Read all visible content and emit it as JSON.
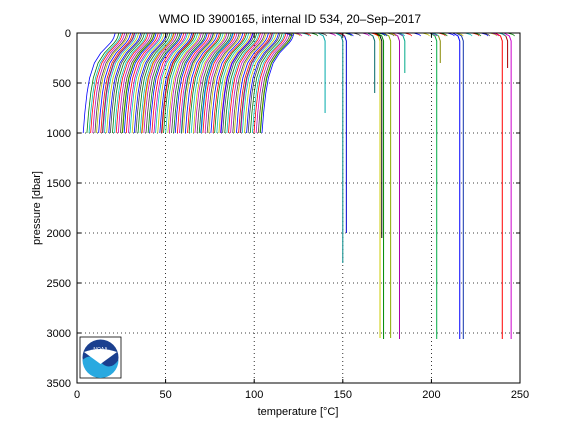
{
  "chart_data": {
    "type": "line",
    "title": "WMO ID 3900165, internal ID 534, 20–Sep–2017",
    "xlabel_prefix": "temperature [",
    "xlabel_unit": "°C",
    "xlabel_suffix": "]",
    "ylabel": "pressure [dbar]",
    "xlim": [
      0,
      250
    ],
    "ylim": [
      0,
      3500
    ],
    "y_reversed": true,
    "grid": true,
    "x_ticks": [
      0,
      50,
      100,
      150,
      200,
      250
    ],
    "y_ticks": [
      0,
      500,
      1000,
      1500,
      2000,
      2500,
      3000,
      3500
    ],
    "profile_group": {
      "count": 100,
      "first_start_temp": 5,
      "last_start_temp": 105,
      "surface_offset": 18,
      "max_pressure": 1000
    },
    "deep_profiles": [
      {
        "temp": 140,
        "depth": 800,
        "color": "#00aaaa"
      },
      {
        "temp": 150,
        "depth": 2300,
        "color": "#008888"
      },
      {
        "temp": 152,
        "depth": 2000,
        "color": "#0000cc"
      },
      {
        "temp": 171,
        "depth": 3050,
        "color": "#cccc00"
      },
      {
        "temp": 172,
        "depth": 2050,
        "color": "#000000"
      },
      {
        "temp": 173,
        "depth": 3060,
        "color": "#008800"
      },
      {
        "temp": 177,
        "depth": 3050,
        "color": "#88aa00"
      },
      {
        "temp": 182,
        "depth": 3060,
        "color": "#aa00aa"
      },
      {
        "temp": 203,
        "depth": 3060,
        "color": "#00aa44"
      },
      {
        "temp": 216,
        "depth": 3060,
        "color": "#0000ff"
      },
      {
        "temp": 218,
        "depth": 3060,
        "color": "#1133aa"
      },
      {
        "temp": 240,
        "depth": 3060,
        "color": "#ff0000"
      },
      {
        "temp": 245,
        "depth": 3060,
        "color": "#cc00cc"
      },
      {
        "temp": 168,
        "depth": 600,
        "color": "#006666"
      },
      {
        "temp": 185,
        "depth": 400,
        "color": "#00aa88"
      },
      {
        "temp": 205,
        "depth": 300,
        "color": "#888800"
      },
      {
        "temp": 243,
        "depth": 350,
        "color": "#aa0000"
      }
    ],
    "palette": [
      "#0000ff",
      "#008000",
      "#ff0000",
      "#00bfbf",
      "#bf00bf",
      "#bfbf00",
      "#404040"
    ]
  },
  "logo": {
    "text": "NOAA"
  }
}
